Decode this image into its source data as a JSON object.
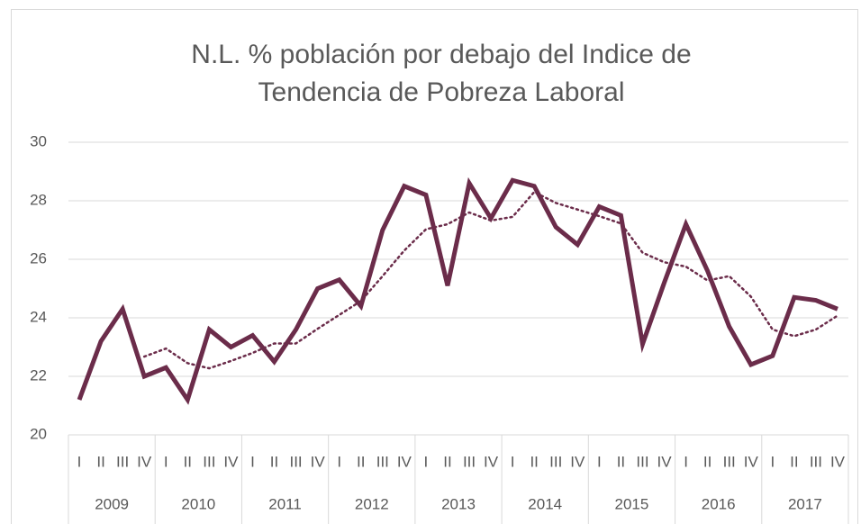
{
  "chart_data": {
    "type": "line",
    "title": [
      "N.L. % población por debajo del Indice de",
      "Tendencia de Pobreza Laboral"
    ],
    "categories": [
      "I",
      "II",
      "III",
      "IV",
      "I",
      "II",
      "III",
      "IV",
      "I",
      "II",
      "III",
      "IV",
      "I",
      "II",
      "III",
      "IV",
      "I",
      "II",
      "III",
      "IV",
      "I",
      "II",
      "III",
      "IV",
      "I",
      "II",
      "III",
      "IV",
      "I",
      "II",
      "III",
      "IV",
      "I",
      "II",
      "III",
      "IV"
    ],
    "years": [
      "2009",
      "2010",
      "2011",
      "2012",
      "2013",
      "2014",
      "2015",
      "2016",
      "2017"
    ],
    "series": [
      {
        "color": "#6b2c4a",
        "style": "solid",
        "values": [
          21.2,
          23.2,
          24.3,
          22.0,
          22.3,
          21.2,
          23.6,
          23.0,
          23.4,
          22.5,
          23.6,
          25.0,
          25.3,
          24.4,
          27.0,
          28.5,
          28.2,
          25.1,
          28.6,
          27.4,
          28.7,
          28.5,
          27.1,
          26.5,
          27.8,
          27.5,
          23.1,
          25.2,
          27.2,
          25.6,
          23.7,
          22.4,
          22.7,
          24.7,
          24.6,
          24.3
        ]
      },
      {
        "color": "#6b2c4a",
        "style": "dotted",
        "values": [
          null,
          null,
          null,
          22.675,
          22.95,
          22.45,
          22.275,
          22.525,
          22.8,
          23.125,
          23.125,
          23.625,
          24.1,
          24.575,
          25.425,
          26.3,
          27.025,
          27.2,
          27.6,
          27.325,
          27.45,
          28.3,
          27.925,
          27.7,
          27.475,
          27.225,
          26.225,
          25.9,
          25.75,
          25.275,
          25.425,
          24.725,
          23.6,
          23.375,
          23.6,
          24.075
        ]
      }
    ],
    "ylim": [
      20,
      30
    ],
    "yticks": [
      20,
      22,
      24,
      26,
      28,
      30
    ],
    "grid": true
  }
}
